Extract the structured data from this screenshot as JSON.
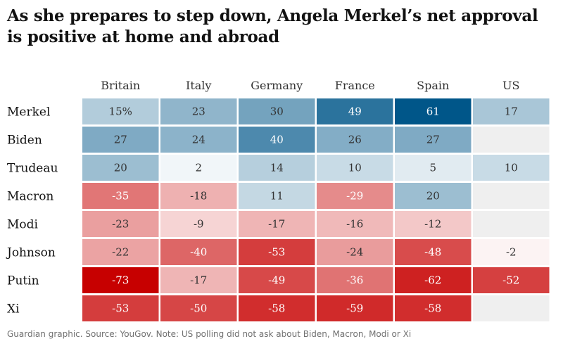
{
  "title": "As she prepares to step down, Angela Merkel’s net approval is positive at home and abroad",
  "source": "Guardian graphic. Source: YouGov. Note: US polling did not ask about Biden, Macron, Modi or Xi",
  "chart_data": {
    "type": "heatmap",
    "title": "As she prepares to step down, Angela Merkel’s net approval is positive at home and abroad",
    "columns": [
      "Britain",
      "Italy",
      "Germany",
      "France",
      "Spain",
      "US"
    ],
    "rows": [
      "Merkel",
      "Biden",
      "Trudeau",
      "Macron",
      "Modi",
      "Johnson",
      "Putin",
      "Xi"
    ],
    "values": [
      [
        15,
        23,
        30,
        49,
        61,
        17
      ],
      [
        27,
        24,
        40,
        26,
        27,
        null
      ],
      [
        20,
        2,
        14,
        10,
        5,
        10
      ],
      [
        -35,
        -18,
        11,
        -29,
        20,
        null
      ],
      [
        -23,
        -9,
        -17,
        -16,
        -12,
        null
      ],
      [
        -22,
        -40,
        -53,
        -24,
        -48,
        -2
      ],
      [
        -73,
        -17,
        -49,
        -36,
        -62,
        -52
      ],
      [
        -53,
        -50,
        -58,
        -59,
        -58,
        null
      ]
    ],
    "first_cell_suffix": "%",
    "unit": "net approval (%)",
    "colors": {
      "positive": "#005689",
      "negative": "#c70000",
      "empty": "#efefef",
      "text_dark": "#333333",
      "text_light": "#ffffff"
    }
  }
}
